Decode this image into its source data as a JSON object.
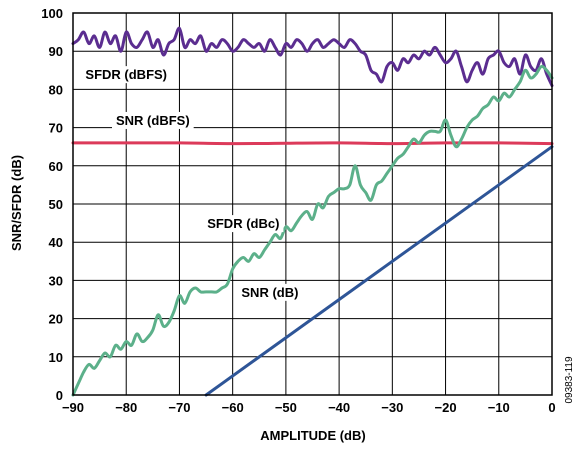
{
  "chart_data": {
    "type": "line",
    "title": "",
    "xlabel": "AMPLITUDE (dB)",
    "ylabel": "SNR/SFDR (dB)",
    "xlim": [
      -90,
      0
    ],
    "ylim": [
      0,
      100
    ],
    "x_ticks": [
      -90,
      -80,
      -70,
      -60,
      -50,
      -40,
      -30,
      -20,
      -10,
      0
    ],
    "y_ticks": [
      0,
      10,
      20,
      30,
      40,
      50,
      60,
      70,
      80,
      90,
      100
    ],
    "x_tick_labels": [
      "−90",
      "−80",
      "−70",
      "−60",
      "−50",
      "−40",
      "−30",
      "−20",
      "−10",
      "0"
    ],
    "y_tick_labels": [
      "0",
      "10",
      "20",
      "30",
      "40",
      "50",
      "60",
      "70",
      "80",
      "90",
      "100"
    ],
    "grid": true,
    "figure_id": "09383-119",
    "series": [
      {
        "name": "SFDR (dBFS)",
        "color": "#5b2d90",
        "x": [
          -90,
          -89,
          -88,
          -87,
          -86,
          -85,
          -84,
          -83,
          -82,
          -81,
          -80,
          -79,
          -78,
          -77,
          -76,
          -75,
          -74,
          -73,
          -72,
          -71,
          -70,
          -69,
          -68,
          -67,
          -66,
          -65,
          -64,
          -63,
          -62,
          -61,
          -60,
          -59,
          -58,
          -57,
          -56,
          -55,
          -54,
          -53,
          -52,
          -51,
          -50,
          -49,
          -48,
          -47,
          -46,
          -45,
          -44,
          -43,
          -42,
          -41,
          -40,
          -39,
          -38,
          -37,
          -36,
          -35,
          -34,
          -33,
          -32,
          -31,
          -30,
          -29,
          -28,
          -27,
          -26,
          -25,
          -24,
          -23,
          -22,
          -21,
          -20,
          -19,
          -18,
          -17,
          -16,
          -15,
          -14,
          -13,
          -12,
          -11,
          -10,
          -9,
          -8,
          -7,
          -6,
          -5,
          -4,
          -3,
          -2,
          -1,
          0
        ],
        "y": [
          92,
          93,
          95,
          92,
          94,
          91,
          95,
          92,
          94,
          90,
          95,
          92,
          91,
          93,
          95,
          91,
          93,
          89,
          92,
          93,
          96,
          91,
          93,
          92,
          94,
          90,
          92,
          91,
          93,
          92,
          90,
          91,
          93,
          92,
          91,
          92,
          90,
          93,
          91,
          89,
          92,
          91,
          93,
          92,
          90,
          92,
          93,
          91,
          92,
          93,
          92,
          91,
          93,
          92,
          90,
          89,
          85,
          84,
          82,
          86,
          87,
          85,
          88,
          87,
          89,
          88,
          90,
          89,
          91,
          89,
          87,
          88,
          90,
          86,
          82,
          85,
          87,
          84,
          88,
          89,
          90,
          87,
          86,
          88,
          84,
          89,
          86,
          85,
          88,
          84,
          81
        ]
      },
      {
        "name": "SNR (dBFS)",
        "color": "#dc3a5a",
        "x": [
          -90,
          -80,
          -70,
          -60,
          -50,
          -40,
          -30,
          -20,
          -10,
          0
        ],
        "y": [
          66,
          66,
          66,
          65.8,
          65.9,
          66,
          65.8,
          66,
          66,
          65.8
        ]
      },
      {
        "name": "SFDR (dBc)",
        "color": "#5cb08a",
        "x": [
          -90,
          -89,
          -88,
          -87,
          -86,
          -85,
          -84,
          -83,
          -82,
          -81,
          -80,
          -79,
          -78,
          -77,
          -76,
          -75,
          -74,
          -73,
          -72,
          -71,
          -70,
          -69,
          -68,
          -67,
          -66,
          -65,
          -64,
          -63,
          -62,
          -61,
          -60,
          -59,
          -58,
          -57,
          -56,
          -55,
          -54,
          -53,
          -52,
          -51,
          -50,
          -49,
          -48,
          -47,
          -46,
          -45,
          -44,
          -43,
          -42,
          -41,
          -40,
          -39,
          -38,
          -37,
          -36,
          -35,
          -34,
          -33,
          -32,
          -31,
          -30,
          -29,
          -28,
          -27,
          -26,
          -25,
          -24,
          -23,
          -22,
          -21,
          -20,
          -19,
          -18,
          -17,
          -16,
          -15,
          -14,
          -13,
          -12,
          -11,
          -10,
          -9,
          -8,
          -7,
          -6,
          -5,
          -4,
          -3,
          -2,
          -1,
          0
        ],
        "y": [
          0,
          3,
          6,
          8,
          7,
          9,
          11,
          10,
          13,
          12,
          14,
          13,
          16,
          14,
          15,
          17,
          21,
          18,
          19,
          22,
          26,
          24,
          27,
          28,
          27,
          27,
          27,
          27,
          28,
          29,
          33,
          35,
          36,
          35,
          37,
          36,
          38,
          40,
          42,
          41,
          44,
          43,
          45,
          47,
          48,
          46,
          50,
          49,
          52,
          53,
          54,
          54,
          55,
          60,
          55,
          53,
          51,
          55,
          56,
          58,
          60,
          62,
          63,
          65,
          67,
          66,
          68,
          69,
          69,
          69,
          72,
          68,
          65,
          67,
          70,
          72,
          73,
          75,
          76,
          78,
          77,
          79,
          78,
          80,
          82,
          85,
          83,
          84,
          86,
          85,
          83
        ]
      },
      {
        "name": "SNR (dB)",
        "color": "#2e5597",
        "x": [
          -65,
          0
        ],
        "y": [
          0,
          65
        ]
      }
    ],
    "annotations": [
      {
        "text": "SFDR (dBFS)",
        "x": -80,
        "y": 84
      },
      {
        "text": "SNR (dBFS)",
        "x": -75,
        "y": 72
      },
      {
        "text": "SFDR (dBc)",
        "x": -58,
        "y": 45
      },
      {
        "text": "SNR (dB)",
        "x": -53,
        "y": 27
      }
    ]
  }
}
